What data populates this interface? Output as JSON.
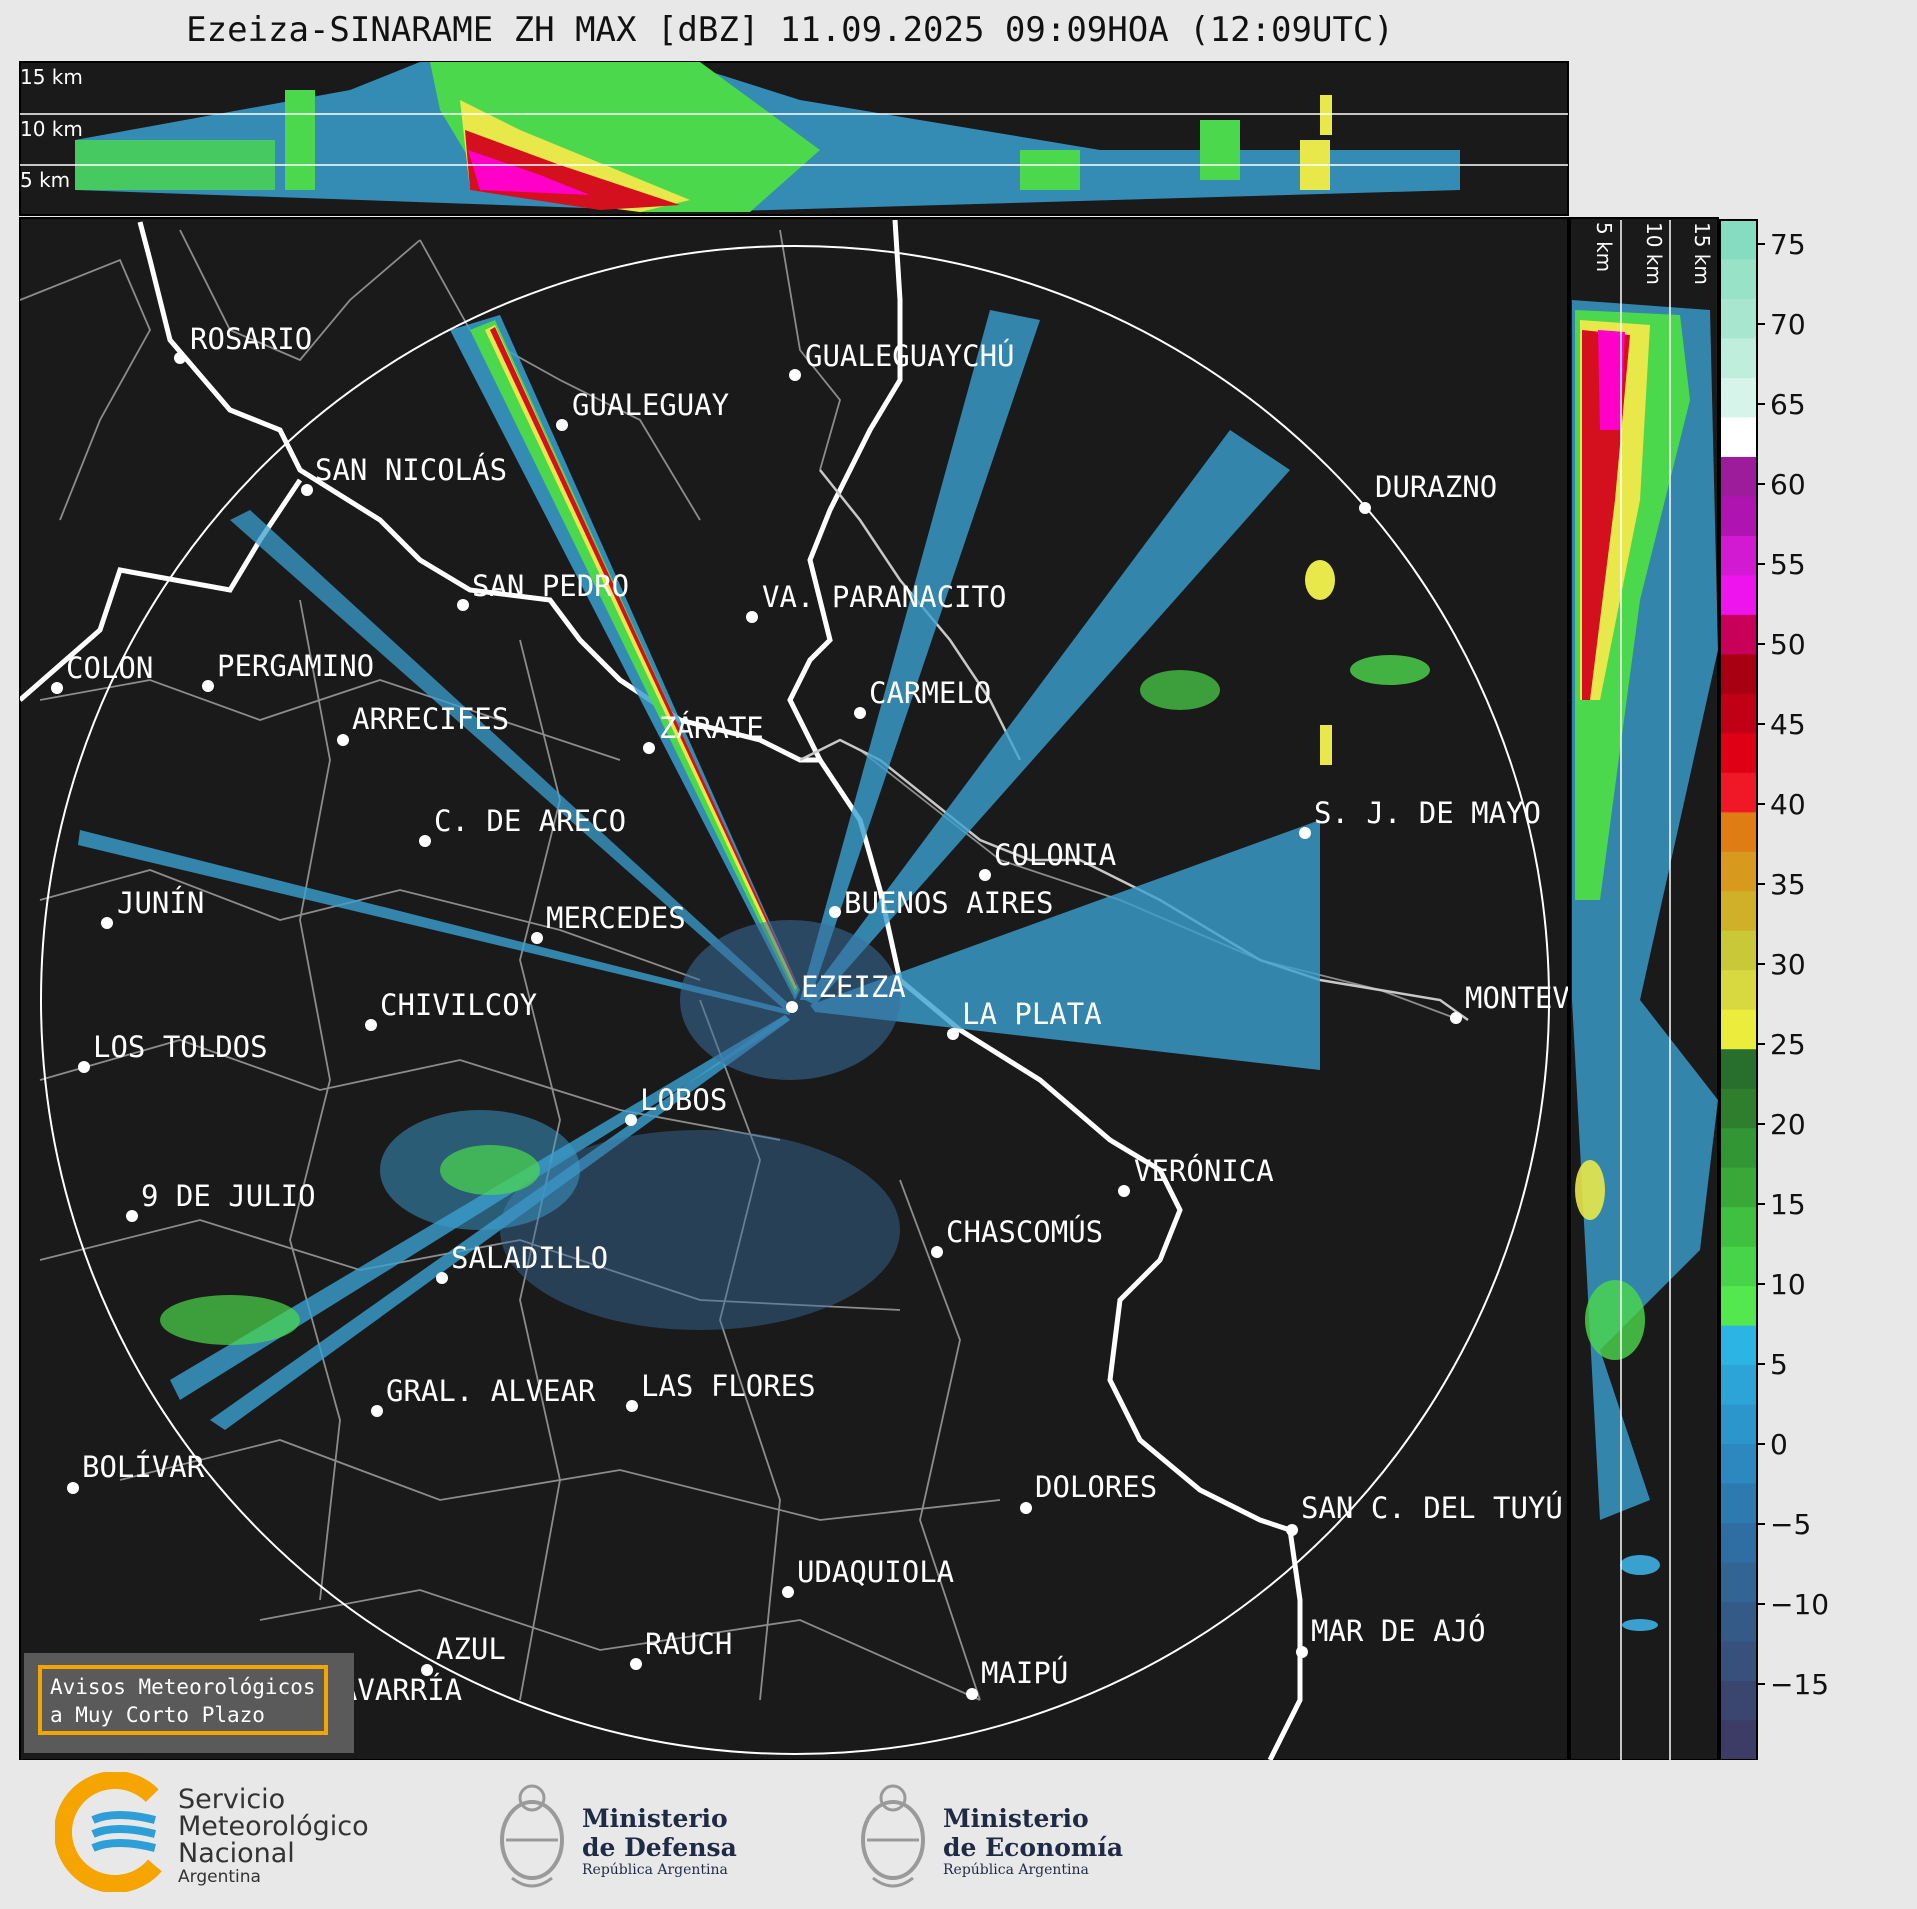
{
  "title": "Ezeiza-SINARAME ZH MAX [dBZ] 11.09.2025 09:09HOA (12:09UTC)",
  "top_panel": {
    "height_labels": [
      "15 km",
      "10 km",
      "5 km"
    ]
  },
  "side_panel": {
    "height_labels": [
      "5 km",
      "10 km",
      "15 km"
    ]
  },
  "colorbar": {
    "ticks": [
      "75",
      "70",
      "65",
      "60",
      "55",
      "50",
      "45",
      "40",
      "35",
      "30",
      "25",
      "20",
      "15",
      "10",
      "5",
      "0",
      "−5",
      "−10",
      "−15"
    ]
  },
  "cities": [
    {
      "name": "ROSARIO"
    },
    {
      "name": "GUALEGUAYCHÚ"
    },
    {
      "name": "GUALEGUAY"
    },
    {
      "name": "SAN NICOLÁS"
    },
    {
      "name": "DURAZNO"
    },
    {
      "name": "SAN PEDRO"
    },
    {
      "name": "VA. PARANACITO"
    },
    {
      "name": "COLON"
    },
    {
      "name": "PERGAMINO"
    },
    {
      "name": "CARMELO"
    },
    {
      "name": "ARRECIFES"
    },
    {
      "name": "ZÁRATE"
    },
    {
      "name": "S. J. DE MAYO"
    },
    {
      "name": "C. DE ARECO"
    },
    {
      "name": "COLONIA"
    },
    {
      "name": "JUNÍN"
    },
    {
      "name": "BUENOS AIRES"
    },
    {
      "name": "MERCEDES"
    },
    {
      "name": "EZEIZA"
    },
    {
      "name": "MONTEV"
    },
    {
      "name": "CHIVILCOY"
    },
    {
      "name": "LA PLATA"
    },
    {
      "name": "LOS TOLDOS"
    },
    {
      "name": "LOBOS"
    },
    {
      "name": "VERÓNICA"
    },
    {
      "name": "9 DE JULIO"
    },
    {
      "name": "CHASCOMÚS"
    },
    {
      "name": "SALADILLO"
    },
    {
      "name": "GRAL. ALVEAR"
    },
    {
      "name": "LAS FLORES"
    },
    {
      "name": "BOLÍVAR"
    },
    {
      "name": "DOLORES"
    },
    {
      "name": "SAN C. DEL TUYÚ"
    },
    {
      "name": "UDAQUIOLA"
    },
    {
      "name": "MAR DE AJÓ"
    },
    {
      "name": "AZUL"
    },
    {
      "name": "RAUCH"
    },
    {
      "name": "OLAVARRÍA"
    },
    {
      "name": "MAIPÚ"
    }
  ],
  "alert_box": {
    "line1": "Avisos Meteorológicos",
    "line2": "a Muy Corto Plazo"
  },
  "footer": {
    "smn": {
      "line1": "Servicio",
      "line2": "Meteorológico",
      "line3": "Nacional",
      "line4": "Argentina"
    },
    "defensa": {
      "line1": "Ministerio",
      "line2": "de Defensa",
      "line3": "República Argentina"
    },
    "economia": {
      "line1": "Ministerio",
      "line2": "de Economía",
      "line3": "República Argentina"
    }
  },
  "colors": {
    "background": "#1a1a1a",
    "range_ring": "#ffffff",
    "coast": "#ffffff",
    "border": "#8c8c8c",
    "alert_border": "#f5a400"
  }
}
